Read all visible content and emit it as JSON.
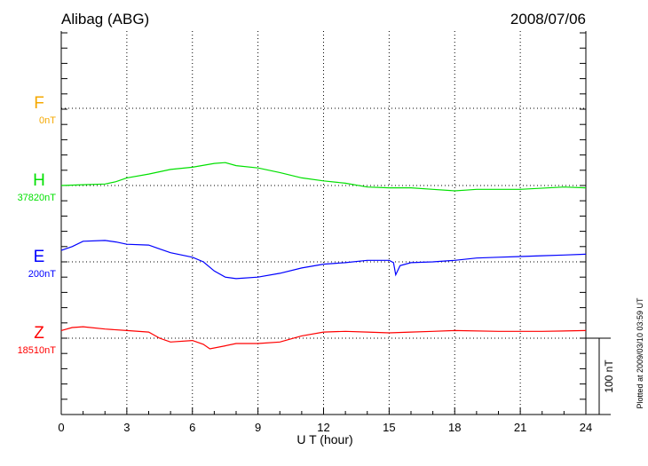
{
  "chart_data": {
    "type": "line",
    "title": "Alibag (ABG)",
    "date": "2008/07/06",
    "xlabel": "U T (hour)",
    "xlim": [
      0,
      24
    ],
    "xticks": [
      "0",
      "3",
      "6",
      "9",
      "12",
      "15",
      "18",
      "21",
      "24"
    ],
    "grid": true,
    "scale_bar": "100 nT",
    "footnote": "Plotted at 2009/03/10 03:59 UT",
    "series": [
      {
        "name": "F",
        "baseline_label": "0nT",
        "color": "#f5a800",
        "x": [],
        "y": []
      },
      {
        "name": "H",
        "baseline_label": "37820nT",
        "color": "#00e000",
        "x": [
          0,
          1,
          2,
          2.5,
          3,
          4,
          5,
          6,
          7,
          7.5,
          8,
          9,
          10,
          11,
          12,
          13,
          14,
          15,
          16,
          17,
          18,
          18.5,
          19,
          21,
          23,
          24
        ],
        "y": [
          37820,
          37821,
          37822,
          37825,
          37830,
          37835,
          37841,
          37844,
          37849,
          37850,
          37846,
          37843,
          37837,
          37830,
          37826,
          37823,
          37818,
          37817,
          37817,
          37815,
          37813,
          37814,
          37815,
          37815,
          37818,
          37817
        ]
      },
      {
        "name": "E",
        "baseline_label": "200nT",
        "color": "#0000ff",
        "x": [
          0,
          0.5,
          1,
          2,
          2.5,
          3,
          4,
          4.5,
          5,
          6,
          6.5,
          7,
          7.5,
          8,
          9,
          10,
          11,
          12,
          13,
          14,
          15,
          15.2,
          15.3,
          15.5,
          16,
          17,
          18,
          19,
          20,
          21,
          22,
          23,
          24
        ],
        "y": [
          215,
          220,
          227,
          228,
          226,
          223,
          222,
          217,
          212,
          206,
          200,
          188,
          180,
          178,
          180,
          185,
          192,
          197,
          199,
          202,
          202,
          199,
          183,
          195,
          199,
          200,
          202,
          205,
          206,
          207,
          208,
          209,
          210
        ]
      },
      {
        "name": "Z",
        "baseline_label": "18510nT",
        "color": "#ff0000",
        "x": [
          0,
          0.5,
          1,
          2,
          3,
          4,
          4.5,
          5,
          6,
          6.5,
          6.8,
          7.5,
          8,
          9,
          10,
          11,
          12,
          13,
          14,
          15,
          16,
          17,
          18,
          20,
          22,
          24
        ],
        "y": [
          18520,
          18524,
          18525,
          18522,
          18520,
          18518,
          18510,
          18505,
          18507,
          18502,
          18496,
          18500,
          18503,
          18503,
          18505,
          18513,
          18518,
          18519,
          18518,
          18517,
          18518,
          18519,
          18520,
          18519,
          18519,
          18520
        ]
      }
    ]
  }
}
